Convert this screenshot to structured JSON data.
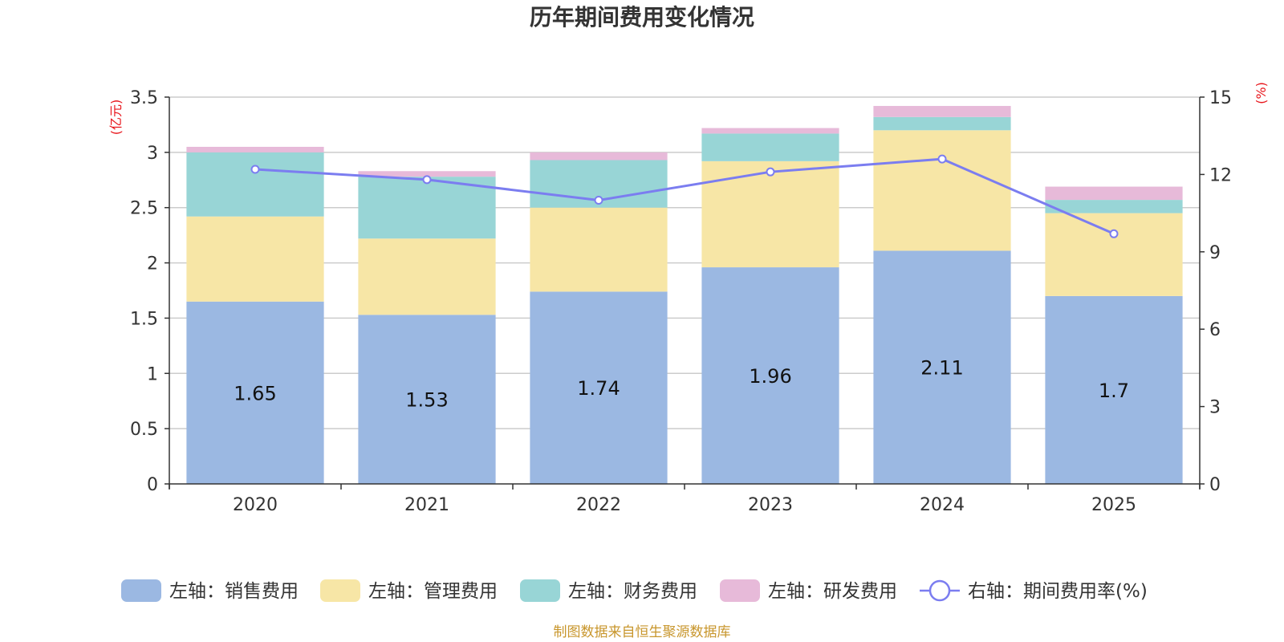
{
  "chart_data": {
    "type": "bar",
    "title": "历年期间费用变化情况",
    "categories": [
      "2020",
      "2021",
      "2022",
      "2023",
      "2024",
      "2025"
    ],
    "left_axis": {
      "unit_label": "(亿元)",
      "ylim": [
        0,
        3.5
      ],
      "ticks": [
        "0",
        "0.5",
        "1",
        "1.5",
        "2",
        "2.5",
        "3",
        "3.5"
      ]
    },
    "right_axis": {
      "unit_label": "(%)",
      "ylim": [
        0,
        15
      ],
      "ticks": [
        "0",
        "3",
        "6",
        "9",
        "12",
        "15"
      ]
    },
    "series": [
      {
        "name": "左轴：销售费用",
        "kind": "bar",
        "axis": "left",
        "color": "#9bb8e2",
        "values": [
          1.65,
          1.53,
          1.74,
          1.96,
          2.11,
          1.7
        ],
        "show_labels": true
      },
      {
        "name": "左轴：管理费用",
        "kind": "bar",
        "axis": "left",
        "color": "#f7e6a6",
        "values": [
          0.77,
          0.69,
          0.76,
          0.96,
          1.09,
          0.75
        ],
        "show_labels": false
      },
      {
        "name": "左轴：财务费用",
        "kind": "bar",
        "axis": "left",
        "color": "#98d5d6",
        "values": [
          0.58,
          0.56,
          0.43,
          0.25,
          0.12,
          0.12
        ],
        "show_labels": false
      },
      {
        "name": "左轴：研发费用",
        "kind": "bar",
        "axis": "left",
        "color": "#e7bad9",
        "values": [
          0.05,
          0.05,
          0.07,
          0.05,
          0.1,
          0.12
        ],
        "show_labels": false
      },
      {
        "name": "右轴：期间费用率(%)",
        "kind": "line",
        "axis": "right",
        "color": "#7b7df0",
        "values": [
          12.2,
          11.8,
          11.0,
          12.1,
          12.6,
          9.7
        ]
      }
    ],
    "legend_position": "bottom",
    "grid": true
  },
  "footer": {
    "source": "制图数据来自恒生聚源数据库"
  }
}
